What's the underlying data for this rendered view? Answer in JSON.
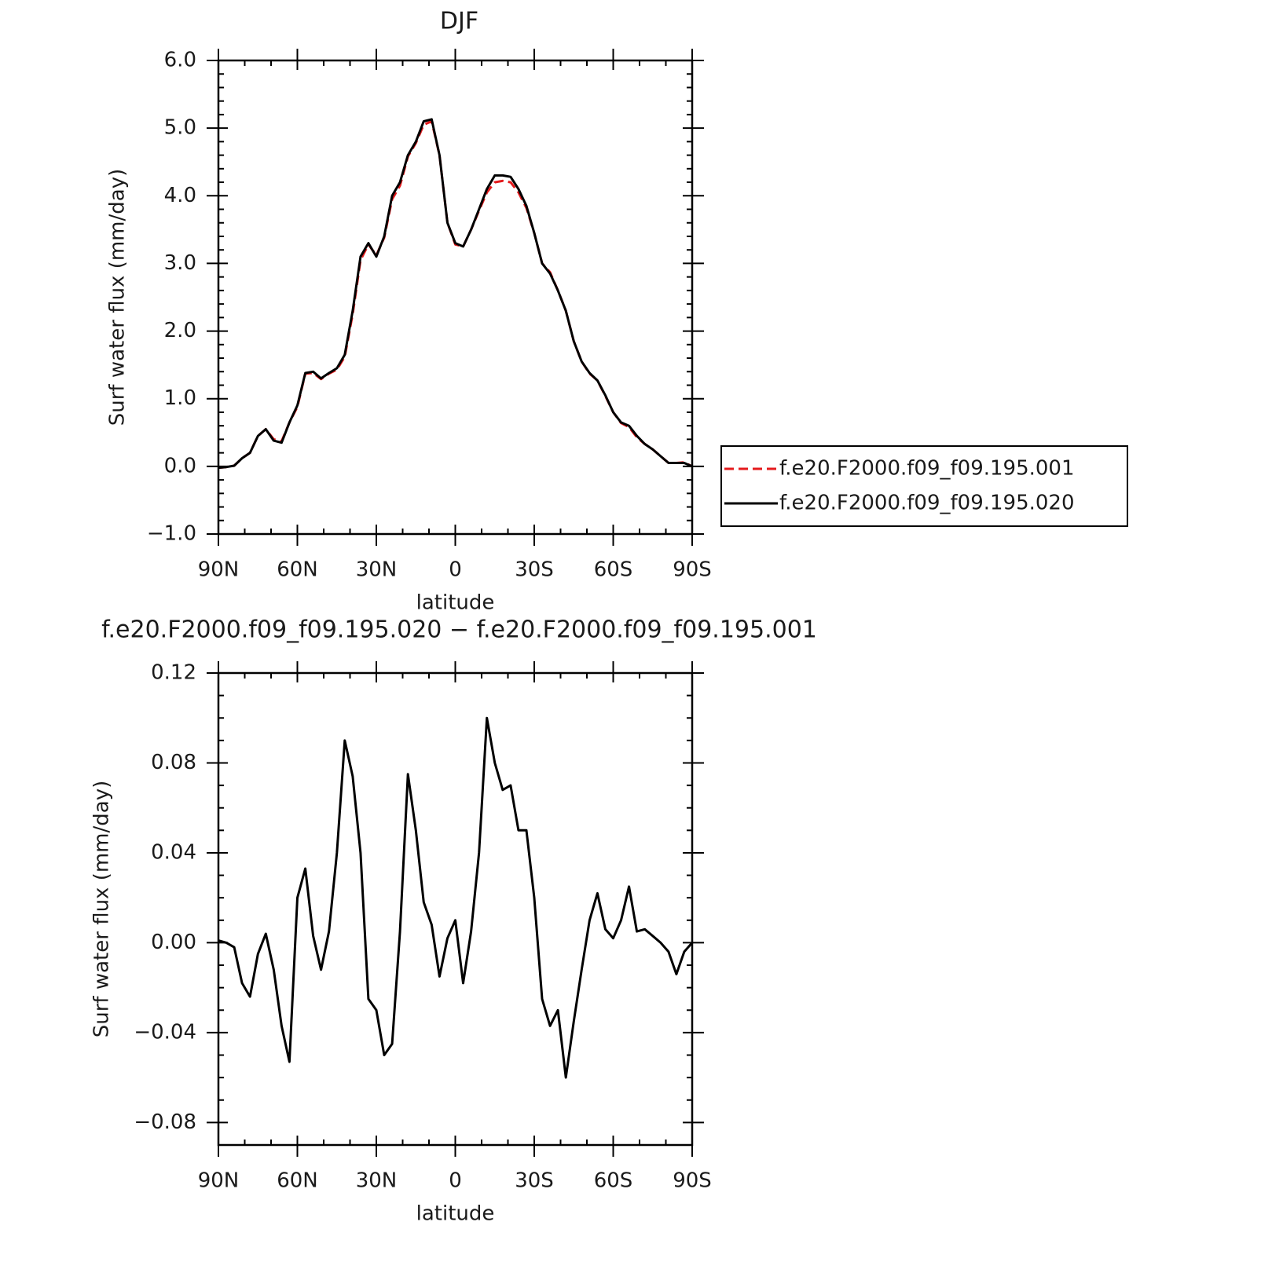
{
  "chart_data": [
    {
      "type": "line",
      "title": "DJF",
      "xlabel": "latitude",
      "ylabel": "Surf water flux (mm/day)",
      "x": [
        90,
        87,
        84,
        81,
        78,
        75,
        72,
        69,
        66,
        63,
        60,
        57,
        54,
        51,
        48,
        45,
        42,
        39,
        36,
        33,
        30,
        27,
        24,
        21,
        18,
        15,
        12,
        9,
        6,
        3,
        0,
        -3,
        -6,
        -9,
        -12,
        -15,
        -18,
        -21,
        -24,
        -27,
        -30,
        -33,
        -36,
        -39,
        -42,
        -45,
        -48,
        -51,
        -54,
        -57,
        -60,
        -63,
        -66,
        -69,
        -72,
        -75,
        -78,
        -81,
        -84,
        -87,
        -90
      ],
      "series": [
        {
          "name": "f.e20.F2000.f09_f09.195.001",
          "color": "#e41a1c",
          "line_style": "dashed",
          "values": [
            -0.02,
            -0.01,
            0.01,
            0.12,
            0.2,
            0.45,
            0.55,
            0.4,
            0.37,
            0.65,
            0.88,
            1.37,
            1.38,
            1.29,
            1.37,
            1.43,
            1.62,
            2.25,
            3.05,
            3.28,
            3.12,
            3.38,
            3.95,
            4.15,
            4.58,
            4.78,
            5.05,
            5.1,
            4.6,
            3.6,
            3.28,
            3.25,
            3.5,
            3.78,
            4.05,
            4.2,
            4.22,
            4.2,
            4.05,
            3.82,
            3.45,
            3.0,
            2.87,
            2.6,
            2.3,
            1.85,
            1.55,
            1.37,
            1.27,
            1.04,
            0.8,
            0.64,
            0.58,
            0.43,
            0.33,
            0.25,
            0.15,
            0.05,
            0.05,
            0.06,
            0.0
          ]
        },
        {
          "name": "f.e20.F2000.f09_f09.195.020",
          "color": "#000000",
          "line_style": "solid",
          "values": [
            -0.02,
            -0.01,
            0.01,
            0.12,
            0.2,
            0.45,
            0.55,
            0.38,
            0.35,
            0.65,
            0.9,
            1.38,
            1.4,
            1.3,
            1.38,
            1.45,
            1.65,
            2.3,
            3.1,
            3.3,
            3.1,
            3.4,
            4.0,
            4.2,
            4.6,
            4.8,
            5.1,
            5.13,
            4.6,
            3.6,
            3.3,
            3.25,
            3.5,
            3.8,
            4.1,
            4.3,
            4.3,
            4.28,
            4.1,
            3.85,
            3.45,
            3.0,
            2.85,
            2.6,
            2.3,
            1.85,
            1.55,
            1.38,
            1.27,
            1.05,
            0.8,
            0.65,
            0.6,
            0.45,
            0.33,
            0.25,
            0.15,
            0.05,
            0.05,
            0.05,
            0.0
          ]
        }
      ],
      "xlim": [
        90,
        -90
      ],
      "xticks": [
        {
          "value": 90,
          "label": "90N"
        },
        {
          "value": 60,
          "label": "60N"
        },
        {
          "value": 30,
          "label": "30N"
        },
        0,
        {
          "value": -30,
          "label": "30S"
        },
        {
          "value": -60,
          "label": "60S"
        },
        {
          "value": -90,
          "label": "90S"
        }
      ],
      "ylim": [
        -1.0,
        6.0
      ],
      "yticks": [
        {
          "value": -1.0,
          "label": "−1.0"
        },
        {
          "value": 0.0,
          "label": "0.0"
        },
        {
          "value": 1.0,
          "label": "1.0"
        },
        {
          "value": 2.0,
          "label": "2.0"
        },
        {
          "value": 3.0,
          "label": "3.0"
        },
        {
          "value": 4.0,
          "label": "4.0"
        },
        {
          "value": 5.0,
          "label": "5.0"
        },
        {
          "value": 6.0,
          "label": "6.0"
        }
      ],
      "legend": "right"
    },
    {
      "type": "line",
      "title": "f.e20.F2000.f09_f09.195.020 − f.e20.F2000.f09_f09.195.001",
      "xlabel": "latitude",
      "ylabel": "Surf water flux (mm/day)",
      "x": [
        90,
        87,
        84,
        81,
        78,
        75,
        72,
        69,
        66,
        63,
        60,
        57,
        54,
        51,
        48,
        45,
        42,
        39,
        36,
        33,
        30,
        27,
        24,
        21,
        18,
        15,
        12,
        9,
        6,
        3,
        0,
        -3,
        -6,
        -9,
        -12,
        -15,
        -18,
        -21,
        -24,
        -27,
        -30,
        -33,
        -36,
        -39,
        -42,
        -45,
        -48,
        -51,
        -54,
        -57,
        -60,
        -63,
        -66,
        -69,
        -72,
        -75,
        -78,
        -81,
        -84,
        -87,
        -90
      ],
      "series": [
        {
          "color": "#000000",
          "line_style": "solid",
          "values": [
            0.001,
            0.0,
            -0.002,
            -0.018,
            -0.024,
            -0.005,
            0.004,
            -0.012,
            -0.037,
            -0.053,
            0.02,
            0.033,
            0.003,
            -0.012,
            0.005,
            0.04,
            0.09,
            0.074,
            0.04,
            -0.025,
            -0.03,
            -0.05,
            -0.045,
            0.005,
            0.075,
            0.05,
            0.018,
            0.008,
            -0.015,
            0.002,
            0.01,
            -0.018,
            0.005,
            0.04,
            0.1,
            0.08,
            0.068,
            0.07,
            0.05,
            0.05,
            0.02,
            -0.025,
            -0.037,
            -0.03,
            -0.06,
            -0.035,
            -0.012,
            0.01,
            0.022,
            0.006,
            0.002,
            0.01,
            0.025,
            0.005,
            0.006,
            0.003,
            0.0,
            -0.004,
            -0.014,
            -0.004,
            0.0
          ]
        }
      ],
      "xlim": [
        90,
        -90
      ],
      "xticks": [
        {
          "value": 90,
          "label": "90N"
        },
        {
          "value": 60,
          "label": "60N"
        },
        {
          "value": 30,
          "label": "30N"
        },
        0,
        {
          "value": -30,
          "label": "30S"
        },
        {
          "value": -60,
          "label": "60S"
        },
        {
          "value": -90,
          "label": "90S"
        }
      ],
      "ylim": [
        -0.09,
        0.12
      ],
      "yticks": [
        {
          "value": -0.08,
          "label": "−0.08"
        },
        {
          "value": -0.04,
          "label": "−0.04"
        },
        {
          "value": 0.0,
          "label": "0.00"
        },
        {
          "value": 0.04,
          "label": "0.04"
        },
        {
          "value": 0.08,
          "label": "0.08"
        },
        {
          "value": 0.12,
          "label": "0.12"
        }
      ]
    }
  ]
}
